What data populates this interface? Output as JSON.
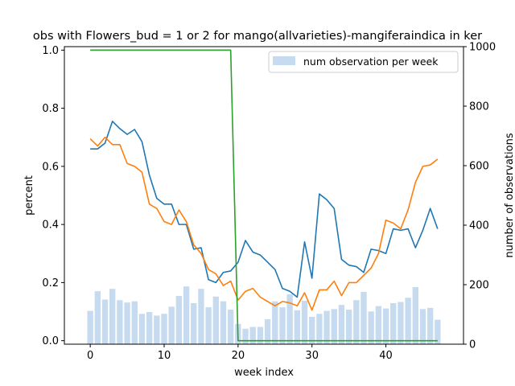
{
  "chart_data": {
    "type": "bar+line",
    "title": "obs with Flowers_bud = 1 or 2 for mango(allvarieties)-mangiferaindica in ker",
    "xlabel": "week index",
    "ylabel": "percent",
    "y2label": "number of observations",
    "xlim": [
      -3.5,
      50.5
    ],
    "ylim": [
      -0.012,
      1.012
    ],
    "y2lim": [
      0,
      1000
    ],
    "xticks": [
      0,
      10,
      20,
      30,
      40
    ],
    "yticks": [
      0.0,
      0.2,
      0.4,
      0.6,
      0.8,
      1.0
    ],
    "y2ticks": [
      0,
      200,
      400,
      600,
      800,
      1000
    ],
    "legend": {
      "label": "num observation per week",
      "placement": "top-right"
    },
    "colors": {
      "bars": "#c6dbef",
      "line_blue": "#1f77b4",
      "line_orange": "#ff7f0e",
      "line_green": "#2ca02c"
    },
    "x": [
      0,
      1,
      2,
      3,
      4,
      5,
      6,
      7,
      8,
      9,
      10,
      11,
      12,
      13,
      14,
      15,
      16,
      17,
      18,
      19,
      20,
      21,
      22,
      23,
      24,
      25,
      26,
      27,
      28,
      29,
      30,
      31,
      32,
      33,
      34,
      35,
      36,
      37,
      38,
      39,
      40,
      41,
      42,
      43,
      44,
      45,
      46,
      47
    ],
    "bars": [
      112,
      178,
      150,
      186,
      148,
      140,
      144,
      102,
      108,
      96,
      102,
      126,
      162,
      194,
      138,
      186,
      124,
      160,
      144,
      116,
      68,
      52,
      58,
      58,
      84,
      144,
      124,
      168,
      114,
      146,
      92,
      102,
      112,
      118,
      132,
      116,
      148,
      176,
      110,
      128,
      120,
      138,
      142,
      156,
      192,
      118,
      122,
      82
    ],
    "series": [
      {
        "name": "",
        "color": "blue",
        "values": [
          0.66,
          0.66,
          0.68,
          0.755,
          0.73,
          0.71,
          0.727,
          0.685,
          0.57,
          0.49,
          0.47,
          0.47,
          0.4,
          0.4,
          0.315,
          0.32,
          0.21,
          0.2,
          0.235,
          0.24,
          0.27,
          0.345,
          0.305,
          0.295,
          0.27,
          0.245,
          0.18,
          0.17,
          0.15,
          0.34,
          0.215,
          0.505,
          0.485,
          0.455,
          0.28,
          0.26,
          0.255,
          0.235,
          0.315,
          0.31,
          0.3,
          0.385,
          0.38,
          0.385,
          0.32,
          0.38,
          0.455,
          0.385
        ]
      },
      {
        "name": "",
        "color": "orange",
        "values": [
          0.695,
          0.67,
          0.7,
          0.675,
          0.675,
          0.61,
          0.6,
          0.58,
          0.47,
          0.455,
          0.41,
          0.4,
          0.45,
          0.41,
          0.33,
          0.3,
          0.245,
          0.23,
          0.19,
          0.205,
          0.14,
          0.17,
          0.18,
          0.15,
          0.135,
          0.12,
          0.135,
          0.13,
          0.12,
          0.165,
          0.105,
          0.175,
          0.175,
          0.205,
          0.155,
          0.2,
          0.2,
          0.225,
          0.25,
          0.3,
          0.415,
          0.405,
          0.385,
          0.45,
          0.545,
          0.6,
          0.605,
          0.625
        ]
      },
      {
        "name": "",
        "color": "green",
        "values": [
          1,
          1,
          1,
          1,
          1,
          1,
          1,
          1,
          1,
          1,
          1,
          1,
          1,
          1,
          1,
          1,
          1,
          1,
          1,
          1,
          0,
          0,
          0,
          0,
          0,
          0,
          0,
          0,
          0,
          0,
          0,
          0,
          0,
          0,
          0,
          0,
          0,
          0,
          0,
          0,
          0,
          0,
          0,
          0,
          0,
          0,
          0,
          0
        ]
      }
    ]
  }
}
